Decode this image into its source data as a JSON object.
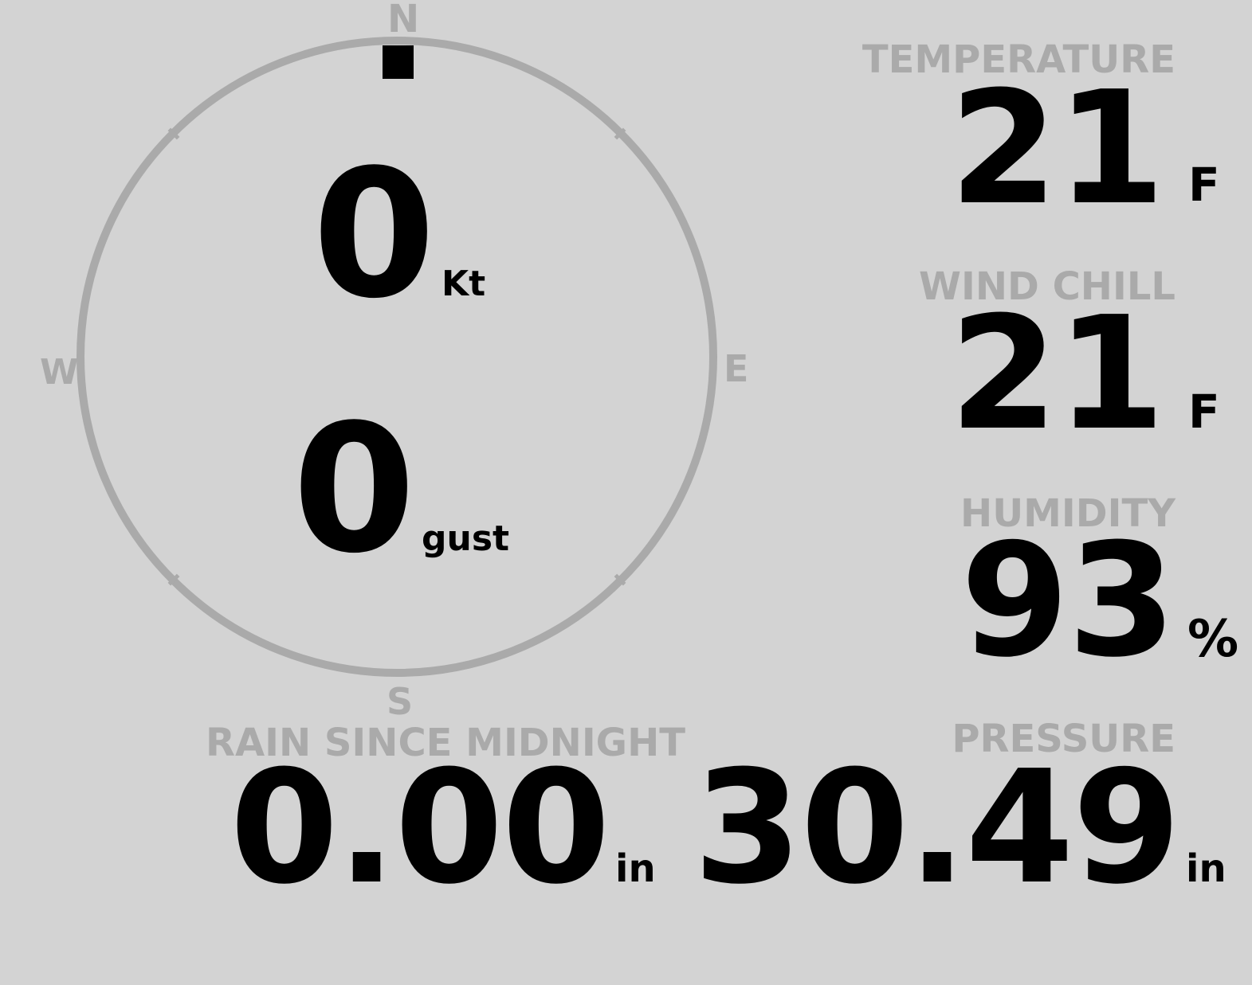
{
  "colors": {
    "background": "#d3d3d3",
    "muted": "#aaaaaa",
    "value": "#000000"
  },
  "wind": {
    "compass": {
      "north": "N",
      "east": "E",
      "south": "S",
      "west": "W"
    },
    "direction_deg": 0,
    "speed": "0",
    "speed_unit": "Kt",
    "gust": "0",
    "gust_unit": "gust"
  },
  "temperature": {
    "label": "TEMPERATURE",
    "value": "21",
    "unit": "F"
  },
  "wind_chill": {
    "label": "WIND CHILL",
    "value": "21",
    "unit": "F"
  },
  "humidity": {
    "label": "HUMIDITY",
    "value": "93",
    "unit": "%"
  },
  "rain": {
    "label": "RAIN SINCE MIDNIGHT",
    "value": "0.00",
    "unit": "in"
  },
  "pressure": {
    "label": "PRESSURE",
    "value": "30.49",
    "unit": "in"
  }
}
